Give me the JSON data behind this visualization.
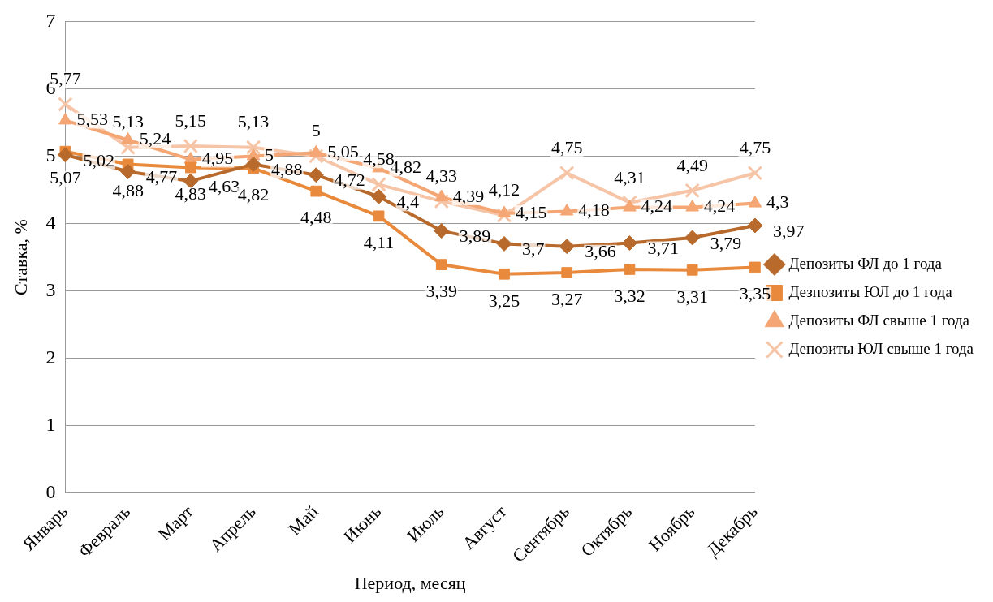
{
  "chart_data": {
    "type": "line",
    "xlabel": "Период, месяц",
    "ylabel": "Ставка, %",
    "categories": [
      "Январь",
      "Февраль",
      "Март",
      "Апрель",
      "Май",
      "Июнь",
      "Июль",
      "Август",
      "Сентябрь",
      "Октябрь",
      "Ноябрь",
      "Декабрь"
    ],
    "ylim": [
      0,
      7
    ],
    "yticks": [
      0,
      1,
      2,
      3,
      4,
      5,
      6,
      7
    ],
    "grid": "y",
    "legend": "right",
    "series": [
      {
        "name": "Депозиты ФЛ до 1 года",
        "color": "#b86a2c",
        "marker": "diamond",
        "values": [
          5.02,
          4.77,
          4.63,
          4.88,
          4.72,
          4.4,
          3.89,
          3.7,
          3.66,
          3.71,
          3.79,
          3.97
        ],
        "value_labels": [
          "5,02",
          "4,77",
          "4,63",
          "4,88",
          "4,72",
          "4,4",
          "3,89",
          "3,7",
          "3,66",
          "3,71",
          "3,79",
          "3,97"
        ]
      },
      {
        "name": "Дезпозиты ЮЛ до 1 года",
        "color": "#e8893c",
        "marker": "square",
        "values": [
          5.07,
          4.88,
          4.83,
          4.82,
          4.48,
          4.11,
          3.39,
          3.25,
          3.27,
          3.32,
          3.31,
          3.35
        ],
        "value_labels": [
          "5,07",
          "4,88",
          "4,83",
          "4,82",
          "4,48",
          "4,11",
          "3,39",
          "3,25",
          "3,27",
          "3,32",
          "3,31",
          "3,35"
        ]
      },
      {
        "name": "Депозиты ФЛ свыше 1 года",
        "color": "#f4a674",
        "marker": "triangle",
        "values": [
          5.53,
          5.24,
          4.95,
          5,
          5.05,
          4.82,
          4.39,
          4.15,
          4.18,
          4.24,
          4.24,
          4.3
        ],
        "value_labels": [
          "5,53",
          "5,24",
          "4,95",
          "5",
          "5,05",
          "4,82",
          "4,39",
          "4,15",
          "4,18",
          "4,24",
          "4,24",
          "4,3"
        ]
      },
      {
        "name": "Депозиты ЮЛ свыше 1 года",
        "color": "#f6c4a6",
        "marker": "cross",
        "values": [
          5.77,
          5.13,
          5.15,
          5.13,
          5,
          4.58,
          4.33,
          4.12,
          4.75,
          4.31,
          4.49,
          4.75
        ],
        "value_labels": [
          "5,77",
          "5,13",
          "5,15",
          "5,13",
          "5",
          "4,58",
          "4,33",
          "4,12",
          "4,75",
          "4,31",
          "4,49",
          "4,75"
        ]
      }
    ]
  }
}
